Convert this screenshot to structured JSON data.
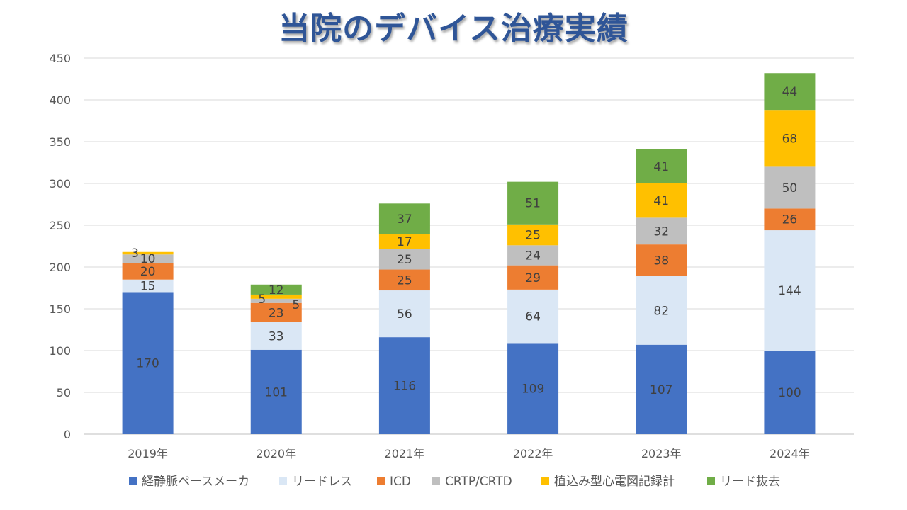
{
  "chart_data": {
    "type": "bar",
    "stacked": true,
    "title": "当院のデバイス治療実績",
    "xlabel": "",
    "ylabel": "",
    "ylim": [
      0,
      450
    ],
    "yticks": [
      0,
      50,
      100,
      150,
      200,
      250,
      300,
      350,
      400,
      450
    ],
    "grid": true,
    "legend_position": "bottom",
    "categories": [
      "2019年",
      "2020年",
      "2021年",
      "2022年",
      "2023年",
      "2024年"
    ],
    "series": [
      {
        "name": "経静脈ペースメーカ",
        "color": "#4472c4",
        "values": [
          170,
          101,
          116,
          109,
          107,
          100
        ]
      },
      {
        "name": "リードレス",
        "color": "#dae7f5",
        "values": [
          15,
          33,
          56,
          64,
          82,
          144
        ]
      },
      {
        "name": "ICD",
        "color": "#ed7d31",
        "values": [
          20,
          23,
          25,
          29,
          38,
          26
        ]
      },
      {
        "name": "CRTP/CRTD",
        "color": "#bfbfbf",
        "values": [
          10,
          5,
          25,
          24,
          32,
          50
        ]
      },
      {
        "name": "植込み型心電図記録計",
        "color": "#ffc000",
        "values": [
          3,
          5,
          17,
          25,
          41,
          68
        ]
      },
      {
        "name": "リード抜去",
        "color": "#70ad47",
        "values": [
          0,
          12,
          37,
          51,
          41,
          44
        ]
      }
    ]
  }
}
